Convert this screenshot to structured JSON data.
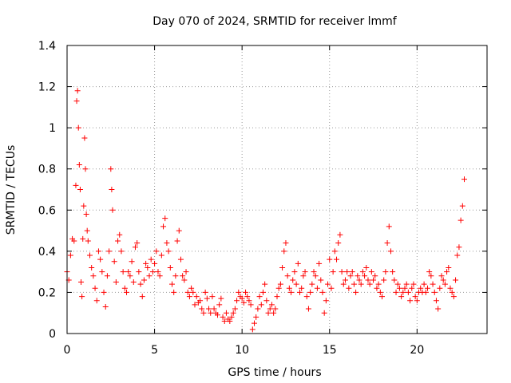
{
  "chart_data": {
    "type": "scatter",
    "title": "Day 070 of 2024, SRMTID for receiver lmmf",
    "xlabel": "GPS time / hours",
    "ylabel": "SRMTID / TECUs",
    "xlim": [
      0,
      24
    ],
    "ylim": [
      0,
      1.4
    ],
    "x_ticks": [
      0,
      5,
      10,
      15,
      20
    ],
    "x_tick_labels": [
      "0",
      "5",
      "10",
      "15",
      "20"
    ],
    "y_ticks": [
      0,
      0.2,
      0.4,
      0.6,
      0.8,
      1,
      1.2,
      1.4
    ],
    "y_tick_labels": [
      "0",
      "0.2",
      "0.4",
      "0.6",
      "0.8",
      "1",
      "1.2",
      "1.4"
    ],
    "grid": true,
    "marker": "+",
    "color": "#ff0000",
    "series": [
      {
        "name": "SRMTID",
        "x": [
          0.0,
          0.1,
          0.2,
          0.3,
          0.4,
          0.5,
          0.55,
          0.6,
          0.65,
          0.7,
          0.75,
          0.8,
          0.85,
          0.9,
          0.95,
          1.0,
          1.05,
          1.1,
          1.15,
          1.2,
          1.3,
          1.4,
          1.5,
          1.6,
          1.7,
          1.8,
          1.9,
          2.0,
          2.1,
          2.2,
          2.3,
          2.4,
          2.5,
          2.55,
          2.6,
          2.7,
          2.8,
          2.9,
          3.0,
          3.1,
          3.2,
          3.3,
          3.4,
          3.5,
          3.6,
          3.7,
          3.8,
          3.9,
          4.0,
          4.1,
          4.2,
          4.3,
          4.4,
          4.5,
          4.6,
          4.7,
          4.8,
          4.9,
          5.0,
          5.1,
          5.2,
          5.3,
          5.4,
          5.5,
          5.6,
          5.7,
          5.8,
          5.9,
          6.0,
          6.1,
          6.2,
          6.3,
          6.4,
          6.5,
          6.6,
          6.7,
          6.8,
          6.9,
          7.0,
          7.1,
          7.2,
          7.3,
          7.4,
          7.5,
          7.6,
          7.7,
          7.8,
          7.9,
          8.0,
          8.1,
          8.2,
          8.3,
          8.4,
          8.5,
          8.6,
          8.7,
          8.8,
          8.9,
          9.0,
          9.1,
          9.2,
          9.3,
          9.4,
          9.5,
          9.6,
          9.7,
          9.8,
          9.9,
          10.0,
          10.1,
          10.2,
          10.3,
          10.4,
          10.5,
          10.6,
          10.7,
          10.8,
          10.9,
          11.0,
          11.1,
          11.2,
          11.3,
          11.4,
          11.5,
          11.6,
          11.7,
          11.8,
          11.9,
          12.0,
          12.1,
          12.2,
          12.3,
          12.4,
          12.5,
          12.6,
          12.7,
          12.8,
          12.9,
          13.0,
          13.1,
          13.2,
          13.3,
          13.4,
          13.5,
          13.6,
          13.7,
          13.8,
          13.9,
          14.0,
          14.1,
          14.2,
          14.3,
          14.4,
          14.5,
          14.6,
          14.7,
          14.8,
          14.9,
          15.0,
          15.1,
          15.2,
          15.3,
          15.4,
          15.5,
          15.6,
          15.7,
          15.8,
          15.9,
          16.0,
          16.1,
          16.2,
          16.3,
          16.4,
          16.5,
          16.6,
          16.7,
          16.8,
          16.9,
          17.0,
          17.1,
          17.2,
          17.3,
          17.4,
          17.5,
          17.6,
          17.7,
          17.8,
          17.9,
          18.0,
          18.1,
          18.2,
          18.3,
          18.4,
          18.5,
          18.6,
          18.7,
          18.8,
          18.9,
          19.0,
          19.1,
          19.2,
          19.3,
          19.4,
          19.5,
          19.6,
          19.7,
          19.8,
          19.9,
          20.0,
          20.1,
          20.2,
          20.3,
          20.4,
          20.5,
          20.6,
          20.7,
          20.8,
          20.9,
          21.0,
          21.1,
          21.2,
          21.3,
          21.4,
          21.5,
          21.6,
          21.7,
          21.8,
          21.9,
          22.0,
          22.1,
          22.2,
          22.3,
          22.4,
          22.5,
          22.6,
          22.7
        ],
        "y": [
          0.3,
          0.26,
          0.38,
          0.46,
          0.45,
          0.72,
          1.13,
          1.18,
          1.0,
          0.82,
          0.7,
          0.25,
          0.18,
          0.46,
          0.62,
          0.95,
          0.8,
          0.58,
          0.5,
          0.45,
          0.38,
          0.32,
          0.28,
          0.22,
          0.16,
          0.4,
          0.36,
          0.3,
          0.2,
          0.13,
          0.28,
          0.4,
          0.8,
          0.7,
          0.6,
          0.35,
          0.25,
          0.45,
          0.48,
          0.4,
          0.3,
          0.22,
          0.2,
          0.3,
          0.28,
          0.35,
          0.25,
          0.42,
          0.44,
          0.3,
          0.24,
          0.18,
          0.26,
          0.34,
          0.32,
          0.28,
          0.36,
          0.3,
          0.34,
          0.4,
          0.3,
          0.28,
          0.38,
          0.52,
          0.56,
          0.44,
          0.4,
          0.32,
          0.24,
          0.2,
          0.28,
          0.45,
          0.5,
          0.36,
          0.28,
          0.26,
          0.3,
          0.2,
          0.18,
          0.22,
          0.2,
          0.14,
          0.18,
          0.15,
          0.16,
          0.12,
          0.1,
          0.2,
          0.17,
          0.12,
          0.1,
          0.18,
          0.12,
          0.1,
          0.09,
          0.14,
          0.17,
          0.08,
          0.06,
          0.1,
          0.07,
          0.06,
          0.08,
          0.1,
          0.12,
          0.16,
          0.2,
          0.18,
          0.17,
          0.15,
          0.2,
          0.18,
          0.16,
          0.14,
          0.02,
          0.05,
          0.08,
          0.12,
          0.18,
          0.14,
          0.2,
          0.24,
          0.16,
          0.1,
          0.12,
          0.14,
          0.1,
          0.12,
          0.18,
          0.22,
          0.24,
          0.32,
          0.4,
          0.44,
          0.28,
          0.22,
          0.2,
          0.26,
          0.3,
          0.24,
          0.34,
          0.2,
          0.22,
          0.28,
          0.3,
          0.18,
          0.12,
          0.2,
          0.24,
          0.3,
          0.28,
          0.22,
          0.34,
          0.26,
          0.2,
          0.1,
          0.16,
          0.24,
          0.36,
          0.22,
          0.3,
          0.4,
          0.36,
          0.44,
          0.48,
          0.3,
          0.24,
          0.26,
          0.3,
          0.22,
          0.28,
          0.3,
          0.24,
          0.2,
          0.28,
          0.26,
          0.24,
          0.3,
          0.28,
          0.32,
          0.26,
          0.24,
          0.3,
          0.26,
          0.28,
          0.22,
          0.24,
          0.2,
          0.18,
          0.26,
          0.3,
          0.44,
          0.52,
          0.4,
          0.3,
          0.26,
          0.2,
          0.24,
          0.22,
          0.18,
          0.2,
          0.22,
          0.24,
          0.2,
          0.16,
          0.22,
          0.24,
          0.18,
          0.16,
          0.2,
          0.22,
          0.2,
          0.24,
          0.2,
          0.22,
          0.3,
          0.28,
          0.24,
          0.2,
          0.16,
          0.12,
          0.22,
          0.28,
          0.26,
          0.24,
          0.3,
          0.32,
          0.22,
          0.2,
          0.18,
          0.26,
          0.38,
          0.42,
          0.55,
          0.62,
          0.75
        ]
      }
    ]
  }
}
